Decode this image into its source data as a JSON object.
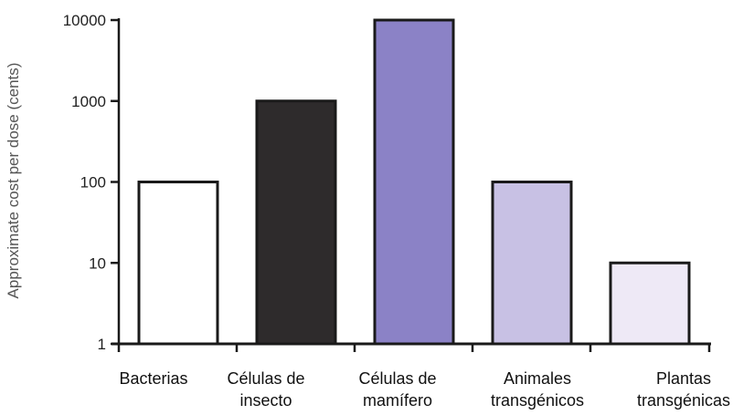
{
  "chart_data": {
    "type": "bar",
    "yscale": "log",
    "ylim": [
      1,
      10000
    ],
    "ylabel": "Approximate cost per dose (cents)",
    "xlabel": "",
    "title": "",
    "yticks": [
      "1",
      "10",
      "100",
      "1000",
      "10000"
    ],
    "categories": [
      {
        "name": "bacterias",
        "lines": [
          "Bacterias"
        ]
      },
      {
        "name": "celulas-de-insecto",
        "lines": [
          "Células de",
          "insecto"
        ]
      },
      {
        "name": "celulas-de-mamifero",
        "lines": [
          "Células de",
          "mamífero"
        ]
      },
      {
        "name": "animales-transgenicos",
        "lines": [
          "Animales",
          "transgénicos"
        ]
      },
      {
        "name": "plantas-transgenicas",
        "lines": [
          "Plantas",
          "transgénicas"
        ]
      }
    ],
    "values": [
      100,
      1000,
      10000,
      100,
      10
    ],
    "colors": [
      "#ffffff",
      "#2e2b2c",
      "#8b82c6",
      "#c8c1e4",
      "#eee9f6"
    ],
    "grid": false,
    "legend": "none"
  }
}
